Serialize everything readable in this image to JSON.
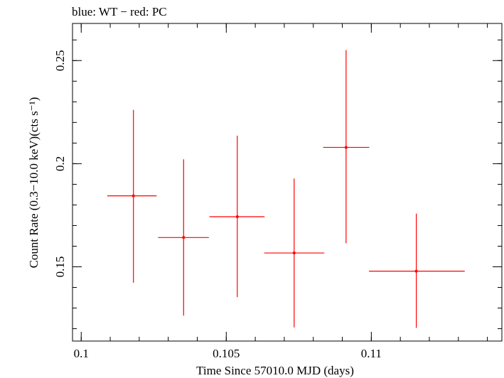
{
  "chart_data": {
    "type": "scatter",
    "title": "blue: WT − red: PC",
    "xlabel": "Time Since 57010.0 MJD (days)",
    "ylabel": "Count Rate (0.3−10.0 keV)(cts s⁻¹)",
    "xlim": [
      0.0997,
      0.1145
    ],
    "ylim": [
      0.114,
      0.268
    ],
    "xticks": [
      {
        "value": 0.1,
        "label": "0.1"
      },
      {
        "value": 0.105,
        "label": "0.105"
      },
      {
        "value": 0.11,
        "label": "0.11"
      }
    ],
    "yticks": [
      {
        "value": 0.15,
        "label": "0.15"
      },
      {
        "value": 0.2,
        "label": "0.2"
      },
      {
        "value": 0.25,
        "label": "0.25"
      }
    ],
    "x_minor_step": 0.001,
    "y_minor_step": 0.01,
    "series": [
      {
        "name": "PC",
        "color": "#ff0000",
        "points": [
          {
            "x": 0.1018,
            "y": 0.1844,
            "xlo": 0.1009,
            "xhi": 0.1026,
            "ylo": 0.1423,
            "yhi": 0.2261
          },
          {
            "x": 0.10353,
            "y": 0.1642,
            "xlo": 0.10265,
            "xhi": 0.1044,
            "ylo": 0.1263,
            "yhi": 0.2021
          },
          {
            "x": 0.10538,
            "y": 0.1743,
            "xlo": 0.10442,
            "xhi": 0.10632,
            "ylo": 0.1353,
            "yhi": 0.2136
          },
          {
            "x": 0.10734,
            "y": 0.1567,
            "xlo": 0.10631,
            "xhi": 0.10838,
            "ylo": 0.1206,
            "yhi": 0.1928
          },
          {
            "x": 0.10913,
            "y": 0.2079,
            "xlo": 0.10834,
            "xhi": 0.10993,
            "ylo": 0.1614,
            "yhi": 0.2551
          },
          {
            "x": 0.11155,
            "y": 0.1479,
            "xlo": 0.10992,
            "xhi": 0.11322,
            "ylo": 0.1204,
            "yhi": 0.1758
          }
        ]
      }
    ]
  }
}
